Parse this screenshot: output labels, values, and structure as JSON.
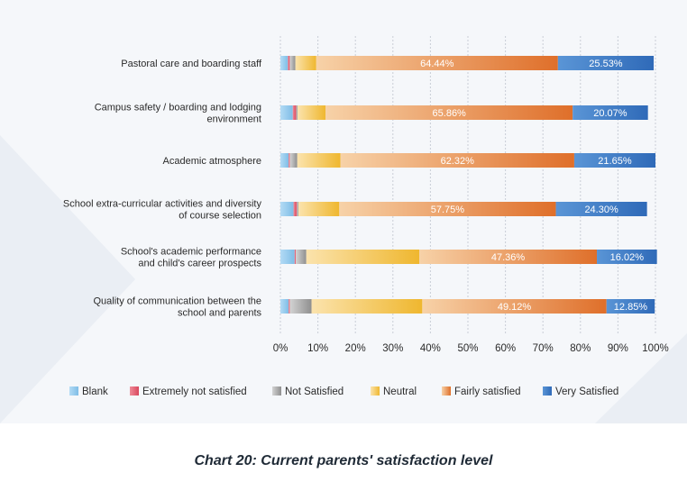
{
  "chart_data": {
    "type": "bar",
    "orientation": "horizontal",
    "stacked": true,
    "caption": "Chart 20: Current parents' satisfaction level",
    "categories": [
      [
        "Pastoral care and boarding staff"
      ],
      [
        "Campus safety / boarding and lodging",
        "environment"
      ],
      [
        "Academic atmosphere"
      ],
      [
        "School extra-curricular activities and diversity",
        "of course selection"
      ],
      [
        "School's academic performance",
        "and child's career prospects"
      ],
      [
        "Quality of communication between the",
        "school and parents"
      ]
    ],
    "series": [
      {
        "name": "Blank",
        "values": [
          2.0,
          3.3,
          2.2,
          3.5,
          3.8,
          2.2
        ]
      },
      {
        "name": "Extremely not satisfied",
        "values": [
          0.5,
          0.9,
          0.3,
          0.9,
          0.3,
          0.3
        ]
      },
      {
        "name": "Not Satisfied",
        "values": [
          1.5,
          0.4,
          2.0,
          0.4,
          2.8,
          5.8
        ]
      },
      {
        "name": "Neutral",
        "values": [
          5.56,
          7.47,
          11.53,
          10.9,
          30.12,
          29.53
        ]
      },
      {
        "name": "Fairly satisfied",
        "values": [
          64.44,
          65.86,
          62.32,
          57.75,
          47.36,
          49.12
        ]
      },
      {
        "name": "Very Satisfied",
        "values": [
          25.53,
          20.07,
          21.65,
          24.3,
          16.02,
          12.85
        ]
      }
    ],
    "value_labels": [
      [
        "64.44%",
        "25.53%"
      ],
      [
        "65.86%",
        "20.07%"
      ],
      [
        "62.32%",
        "21.65%"
      ],
      [
        "57.75%",
        "24.30%"
      ],
      [
        "47.36%",
        "16.02%"
      ],
      [
        "49.12%",
        "12.85%"
      ]
    ],
    "x_ticks": [
      "0%",
      "10%",
      "20%",
      "30%",
      "40%",
      "50%",
      "60%",
      "70%",
      "80%",
      "90%",
      "100%"
    ],
    "xlim": [
      0,
      100
    ],
    "grid": true,
    "legend_position": "bottom",
    "colors": {
      "Blank": "#8cc6ec",
      "Extremely not satisfied": "#e0566a",
      "Not Satisfied": "#a5a5a5",
      "Neutral": "#f2c04e",
      "Fairly satisfied": "#e8843c",
      "Very Satisfied": "#3f7dc9",
      "grid": "#c9ced6"
    }
  }
}
